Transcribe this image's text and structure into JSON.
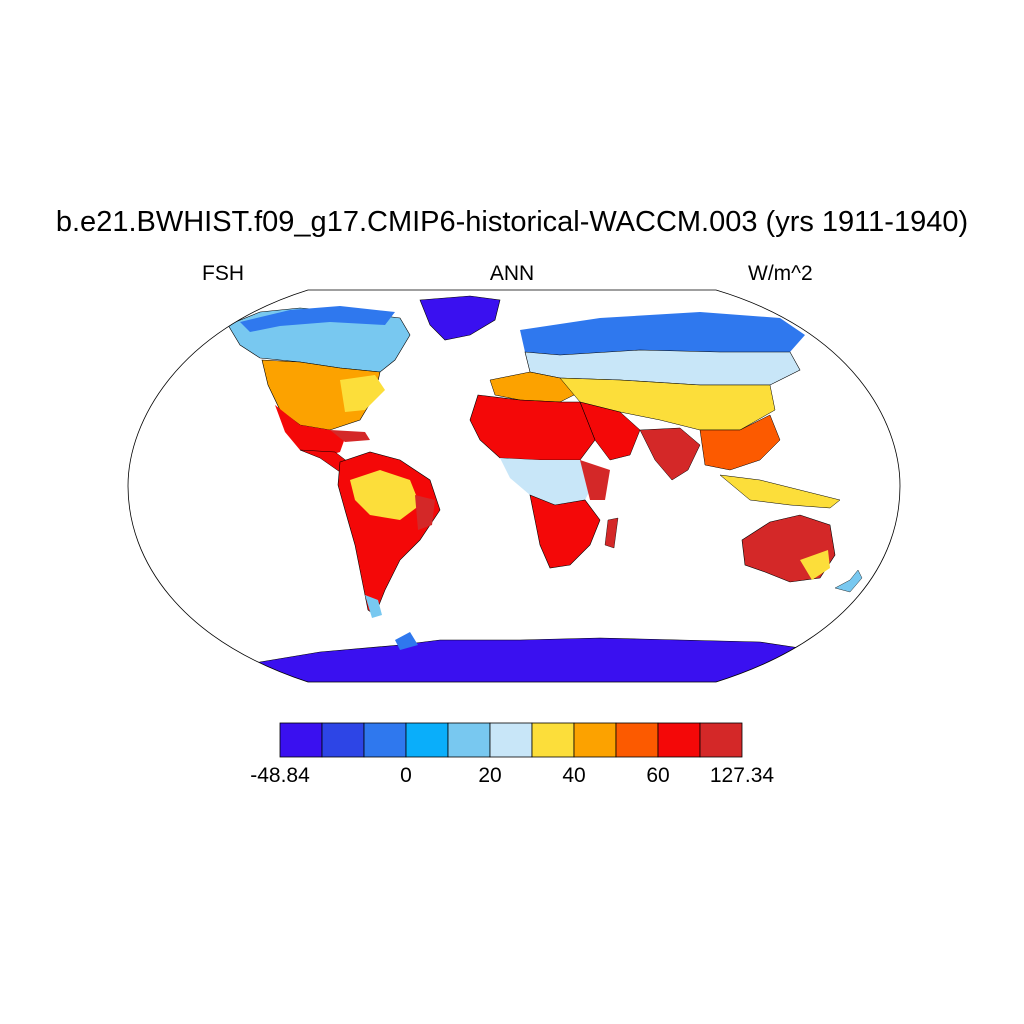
{
  "title": "b.e21.BWHIST.f09_g17.CMIP6-historical-WACCM.003 (yrs 1911-1940)",
  "subtitle": {
    "left": "FSH",
    "center": "ANN",
    "right": "W/m^2"
  },
  "colorbar": {
    "colors": [
      "#3a10f0",
      "#2d45e6",
      "#2f78ee",
      "#0aaefa",
      "#78c8f0",
      "#c8e6f8",
      "#fcde3a",
      "#fca200",
      "#fc5a00",
      "#f40808",
      "#d42828"
    ],
    "labels": [
      {
        "text": "-48.84",
        "boundary": 0
      },
      {
        "text": "0",
        "boundary": 3
      },
      {
        "text": "20",
        "boundary": 5
      },
      {
        "text": "40",
        "boundary": 7
      },
      {
        "text": "60",
        "boundary": 9
      },
      {
        "text": "127.34",
        "boundary": 11
      }
    ]
  }
}
